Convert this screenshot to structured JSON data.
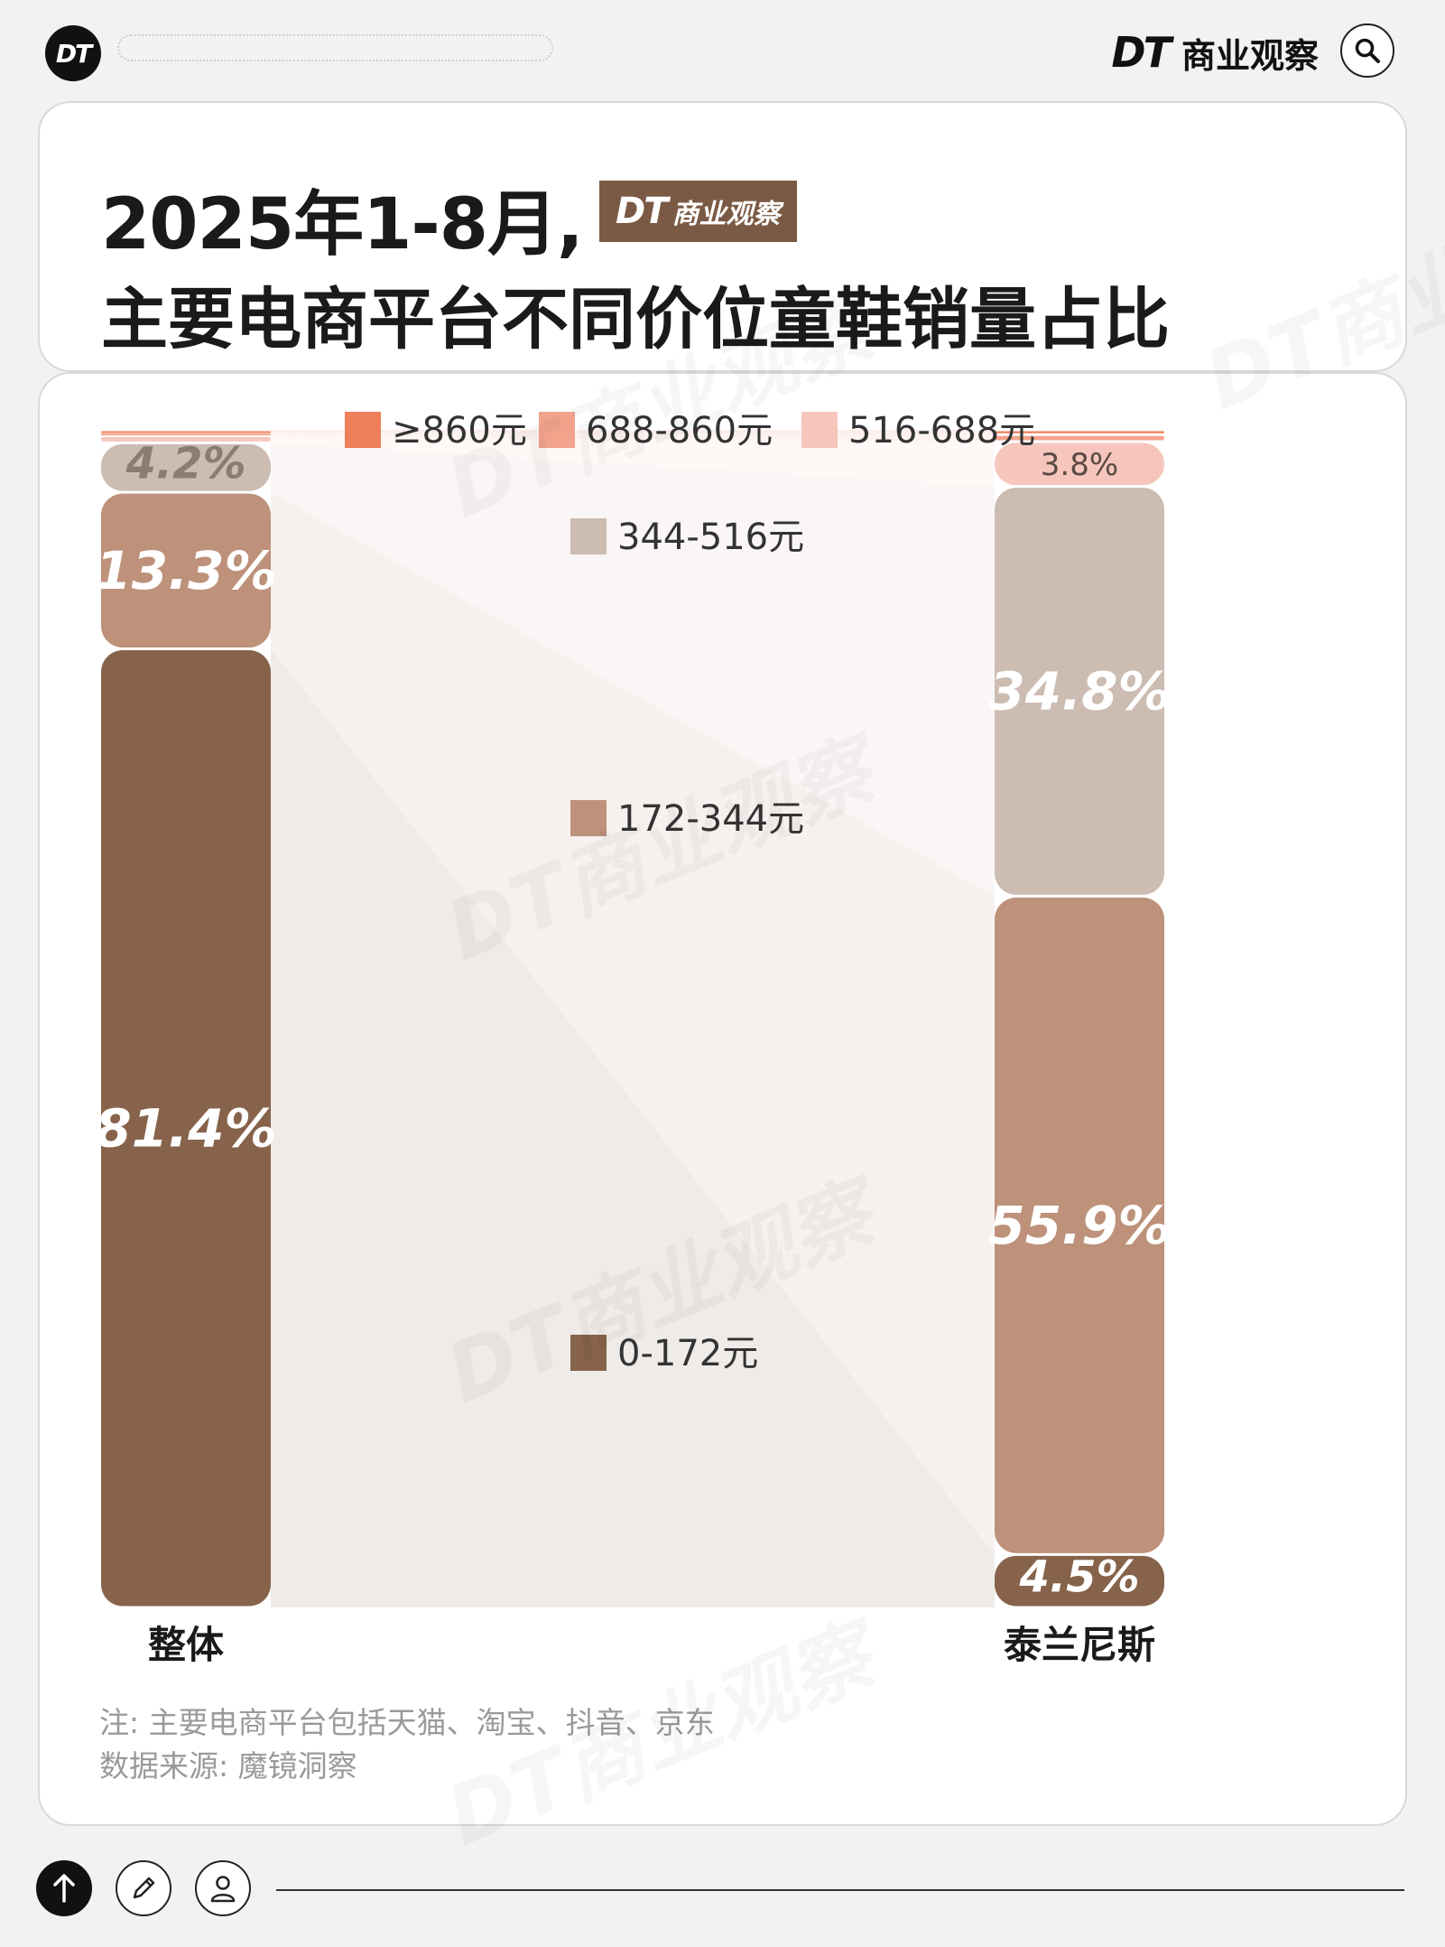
{
  "header": {
    "logo_text": "DT",
    "brand_dt": "DT",
    "brand_cn": "商业观察"
  },
  "title": {
    "line1": "2025年1-8月,",
    "stamp_dt": "DT",
    "stamp_cn": "商业观察",
    "line2": "主要电商平台不同价位童鞋销量占比"
  },
  "note": {
    "line1": "注: 主要电商平台包括天猫、淘宝、抖音、京东",
    "line2": "数据来源: 魔镜洞察"
  },
  "watermark": "DT商业观察",
  "chart_data": {
    "type": "stacked-bar",
    "title": "主要电商平台不同价位童鞋销量占比",
    "categories": [
      "整体",
      "泰兰尼斯"
    ],
    "series": [
      {
        "name": "0-172元",
        "color": "#86634a",
        "values": [
          81.4,
          4.5
        ]
      },
      {
        "name": "172-344元",
        "color": "#bd917a",
        "values": [
          13.3,
          55.9
        ]
      },
      {
        "name": "344-516元",
        "color": "#cdbcb2",
        "values": [
          4.2,
          34.8
        ]
      },
      {
        "name": "516-688元",
        "color": "#f6c6bd",
        "values": [
          0.6,
          3.8
        ]
      },
      {
        "name": "688-860元",
        "color": "#f2a38c",
        "values": [
          0.3,
          0.6
        ]
      },
      {
        "name": "≥860元",
        "color": "#ee7f5b",
        "values": [
          0.2,
          0.4
        ]
      }
    ],
    "data_labels": {
      "整体": {
        "0-172元": "81.4%",
        "172-344元": "13.3%",
        "344-516元": "4.2%"
      },
      "泰兰尼斯": {
        "0-172元": "4.5%",
        "172-344元": "55.9%",
        "344-516元": "34.8%",
        "516-688元": "3.8%"
      }
    },
    "legend": [
      "≥860元",
      "688-860元",
      "516-688元",
      "344-516元",
      "172-344元",
      "0-172元"
    ],
    "ylim": [
      0,
      100
    ],
    "grid": false,
    "legend_placement": "top-center"
  }
}
